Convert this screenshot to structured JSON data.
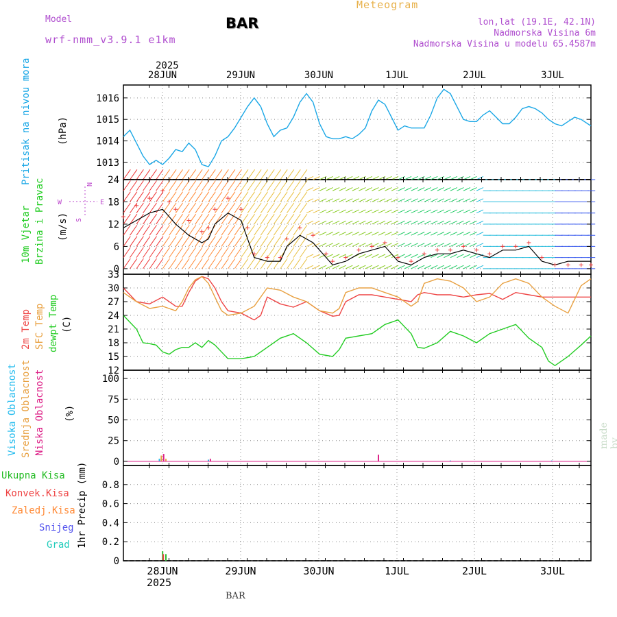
{
  "header": {
    "model_label": "Model",
    "model_name": "wrf-nmm_v3.9.1 e1km",
    "station": "BAR",
    "meteogram_label": "Meteogram",
    "coords": "lon,lat (19.1E, 42.1N)",
    "elevation": "Nadmorska Visina 6m",
    "model_elevation": "Nadmorska Visina u modelu 65.4587m",
    "credit": "made by Angel",
    "bottom_station": "BAR"
  },
  "time_axis": {
    "year": "2025",
    "days": [
      "28JUN",
      "29JUN",
      "30JUN",
      "1JUL",
      "2JUL",
      "3JUL"
    ]
  },
  "panels": {
    "pressure": {
      "label": "Pritisak na nivou mora",
      "unit": "(hPa)"
    },
    "wind": {
      "label1": "10m Vjetar",
      "label2": "Brzina i Pravac",
      "unit": "(m/s)",
      "compass": {
        "n": "N",
        "s": "S",
        "e": "E",
        "w": "W"
      }
    },
    "temp": {
      "label1": "2m Temp",
      "label2": "SFC Temp",
      "label3": "dewpt Temp",
      "unit": "(C)"
    },
    "cloud": {
      "label1": "Visoka Oblacnost",
      "label2": "Srednja Oblacnost",
      "label3": "Niska Oblacnost",
      "unit": "(%)"
    },
    "precip": {
      "label": "1hr Precip (mm)",
      "legend": [
        "Ukupna Kisa",
        "Konvek.Kisa",
        "Zaledj.Kisa",
        "Snijeg",
        "Grad"
      ]
    }
  },
  "colors": {
    "pressure": "#1aa7e6",
    "temp2m": "#ee4444",
    "sfc": "#e8a040",
    "dew": "#22cc22",
    "speed": "#000000",
    "gust": "#ee3333",
    "high_cloud": "#22bbee",
    "mid_cloud": "#e8a040",
    "low_cloud": "#dd2288",
    "total_rain": "#33bb33",
    "conv_rain": "#ee4444",
    "frz_rain": "#ff8833",
    "snow": "#5555ee",
    "hail": "#22ccbb"
  },
  "chart_data": [
    {
      "type": "line",
      "title": "Pritisak na nivou mora",
      "ylabel": "(hPa)",
      "ylim": [
        1012.2,
        1016.6
      ],
      "yticks": [
        1013,
        1014,
        1015,
        1016
      ],
      "xlim": [
        0,
        143
      ],
      "grid": true,
      "series": [
        {
          "name": "Pritisak na nivou mora",
          "x": [
            0,
            2,
            4,
            6,
            8,
            10,
            12,
            14,
            16,
            18,
            20,
            22,
            24,
            26,
            28,
            30,
            32,
            34,
            36,
            38,
            40,
            42,
            44,
            46,
            48,
            50,
            52,
            54,
            56,
            58,
            60,
            62,
            64,
            66,
            68,
            70,
            72,
            74,
            76,
            78,
            80,
            82,
            84,
            86,
            88,
            90,
            92,
            94,
            96,
            98,
            100,
            102,
            104,
            106,
            108,
            110,
            112,
            114,
            116,
            118,
            120,
            122,
            124,
            126,
            128,
            130,
            132,
            134,
            136,
            138,
            140,
            142,
            143
          ],
          "y": [
            1014.2,
            1014.5,
            1013.9,
            1013.3,
            1012.9,
            1013.1,
            1012.9,
            1013.2,
            1013.6,
            1013.5,
            1013.9,
            1013.6,
            1012.9,
            1012.8,
            1013.3,
            1014.0,
            1014.2,
            1014.6,
            1015.1,
            1015.6,
            1016.0,
            1015.6,
            1014.8,
            1014.2,
            1014.5,
            1014.6,
            1015.1,
            1015.8,
            1016.2,
            1015.8,
            1014.8,
            1014.2,
            1014.1,
            1014.1,
            1014.2,
            1014.1,
            1014.3,
            1014.6,
            1015.4,
            1015.9,
            1015.7,
            1015.1,
            1014.5,
            1014.7,
            1014.6,
            1014.6,
            1014.6,
            1015.2,
            1016.0,
            1016.4,
            1016.2,
            1015.6,
            1015.0,
            1014.9,
            1014.9,
            1015.2,
            1015.4,
            1015.1,
            1014.8,
            1014.8,
            1015.1,
            1015.5,
            1015.6,
            1015.5,
            1015.3,
            1015.0,
            1014.8,
            1014.7,
            1014.9,
            1015.1,
            1015.0,
            1014.8,
            1014.7
          ]
        }
      ]
    },
    {
      "type": "line",
      "title": "10m Vjetar Brzina i Pravac",
      "ylabel": "(m/s)",
      "ylim": [
        -1.5,
        24
      ],
      "yticks": [
        0,
        6,
        12,
        18,
        24
      ],
      "xlim": [
        0,
        143
      ],
      "grid": true,
      "series": [
        {
          "name": "Brzina",
          "x": [
            0,
            4,
            8,
            12,
            14,
            16,
            20,
            24,
            26,
            28,
            32,
            36,
            38,
            40,
            44,
            48,
            50,
            54,
            58,
            62,
            64,
            68,
            72,
            76,
            80,
            84,
            88,
            92,
            96,
            100,
            104,
            108,
            112,
            116,
            120,
            124,
            128,
            132,
            136,
            140,
            143
          ],
          "y": [
            11,
            13,
            15,
            16,
            14,
            12,
            9,
            7,
            8,
            12,
            15,
            13,
            8,
            3,
            2,
            2,
            6,
            9,
            7,
            3,
            1,
            2,
            4,
            5,
            6,
            2,
            1,
            3,
            4,
            4,
            5,
            4,
            3,
            5,
            5,
            6,
            2,
            1,
            2,
            2,
            2
          ]
        },
        {
          "name": "Udari",
          "x": [
            0,
            4,
            8,
            12,
            14,
            16,
            20,
            24,
            26,
            28,
            32,
            36,
            38,
            40,
            44,
            48,
            50,
            54,
            58,
            62,
            64,
            68,
            72,
            76,
            80,
            84,
            88,
            92,
            96,
            100,
            104,
            108,
            112,
            116,
            120,
            124,
            128,
            132,
            136,
            140,
            143
          ],
          "y": [
            14,
            17,
            19,
            21,
            18,
            16,
            13,
            10,
            11,
            16,
            19,
            16,
            11,
            4,
            3,
            3,
            8,
            11,
            9,
            4,
            2,
            3,
            5,
            6,
            7,
            3,
            2,
            4,
            5,
            5,
            6,
            5,
            4,
            6,
            6,
            7,
            3,
            1,
            1,
            1,
            1
          ]
        }
      ],
      "wind_rows": [
        0,
        3,
        6,
        9,
        12,
        15,
        18,
        21,
        24
      ],
      "wind_cols_step": 2
    },
    {
      "type": "line",
      "title": "Temp",
      "ylabel": "(C)",
      "ylim": [
        12,
        33
      ],
      "yticks": [
        12,
        15,
        18,
        21,
        24,
        27,
        30,
        33
      ],
      "xlim": [
        0,
        143
      ],
      "grid": true,
      "series": [
        {
          "name": "2m Temp",
          "x": [
            0,
            4,
            8,
            12,
            16,
            18,
            20,
            22,
            24,
            26,
            28,
            30,
            32,
            36,
            40,
            42,
            44,
            48,
            52,
            56,
            60,
            64,
            66,
            68,
            72,
            76,
            80,
            84,
            88,
            90,
            92,
            96,
            100,
            104,
            108,
            112,
            116,
            120,
            124,
            128,
            132,
            136,
            140,
            143
          ],
          "y": [
            30,
            27,
            26.5,
            28,
            26,
            26,
            29,
            31.5,
            32.5,
            32,
            30,
            27,
            25,
            24.5,
            23,
            24,
            28,
            26.5,
            25.8,
            27,
            25,
            23.8,
            24,
            27,
            28.5,
            28.5,
            28,
            27.5,
            27,
            28.5,
            29,
            28.5,
            28.5,
            28,
            28.5,
            28.8,
            27.5,
            29,
            28.5,
            28,
            28,
            28,
            28,
            28
          ]
        },
        {
          "name": "SFC Temp",
          "x": [
            0,
            4,
            8,
            12,
            16,
            18,
            20,
            22,
            24,
            26,
            28,
            30,
            32,
            36,
            40,
            42,
            44,
            48,
            52,
            56,
            60,
            64,
            66,
            68,
            72,
            76,
            80,
            84,
            88,
            90,
            92,
            96,
            100,
            104,
            108,
            112,
            116,
            120,
            124,
            128,
            132,
            136,
            140,
            143
          ],
          "y": [
            29,
            27,
            25.5,
            26,
            25,
            27,
            30,
            31.8,
            32.5,
            31,
            28,
            25,
            24,
            24.5,
            26,
            28,
            30,
            29.5,
            28,
            27,
            25,
            24.5,
            25.5,
            29,
            30,
            30,
            29,
            28,
            26,
            27,
            31,
            32,
            31.5,
            30,
            27,
            28,
            31,
            32,
            31,
            28,
            26,
            24.5,
            30.5,
            32
          ]
        },
        {
          "name": "dewpt Temp",
          "x": [
            0,
            2,
            4,
            6,
            8,
            10,
            12,
            14,
            16,
            18,
            20,
            22,
            24,
            26,
            28,
            30,
            32,
            36,
            40,
            44,
            48,
            52,
            56,
            60,
            64,
            66,
            68,
            72,
            76,
            80,
            84,
            88,
            90,
            92,
            96,
            100,
            104,
            108,
            112,
            116,
            120,
            124,
            128,
            130,
            132,
            136,
            140,
            143
          ],
          "y": [
            24,
            22.5,
            21,
            18,
            17.8,
            17.5,
            16,
            15.5,
            16.5,
            17,
            17,
            18,
            17,
            18.5,
            17.5,
            16,
            14.5,
            14.5,
            15,
            17,
            19,
            20,
            18,
            15.5,
            15,
            16.5,
            19,
            19.5,
            20,
            22,
            23,
            20,
            17,
            16.8,
            18,
            20.5,
            19.5,
            18,
            20,
            21,
            22,
            19,
            17,
            14,
            13,
            15,
            17.5,
            19.5
          ]
        }
      ]
    },
    {
      "type": "bar",
      "title": "Oblacnost",
      "ylabel": "(%)",
      "ylim": [
        -5,
        110
      ],
      "yticks": [
        0,
        25,
        50,
        75,
        100
      ],
      "xlim": [
        0,
        143
      ],
      "grid": true,
      "series": [
        {
          "name": "Visoka Oblacnost",
          "x": [
            11,
            26,
            100,
            131
          ],
          "values": [
            3,
            2,
            1,
            1
          ]
        },
        {
          "name": "Srednja Oblacnost",
          "x": [
            11.6,
            13
          ],
          "values": [
            7,
            3
          ]
        },
        {
          "name": "Niska Oblacnost",
          "x": [
            12.3,
            26.6,
            78
          ],
          "values": [
            9,
            3,
            8
          ]
        }
      ]
    },
    {
      "type": "bar",
      "title": "1hr Precip",
      "ylabel": "1hr Precip (mm)",
      "ylim": [
        0,
        1.0
      ],
      "yticks": [
        0,
        0.2,
        0.4,
        0.6,
        0.8
      ],
      "xlim": [
        0,
        143
      ],
      "grid": true,
      "series": [
        {
          "name": "Ukupna Kisa",
          "x": [
            12,
            13
          ],
          "values": [
            0.1,
            0.07
          ]
        },
        {
          "name": "Konvek.Kisa",
          "x": [
            12.2
          ],
          "values": [
            0.07
          ]
        },
        {
          "name": "Zaledj.Kisa",
          "x": [],
          "values": []
        },
        {
          "name": "Snijeg",
          "x": [],
          "values": []
        },
        {
          "name": "Grad",
          "x": [],
          "values": []
        }
      ]
    }
  ]
}
